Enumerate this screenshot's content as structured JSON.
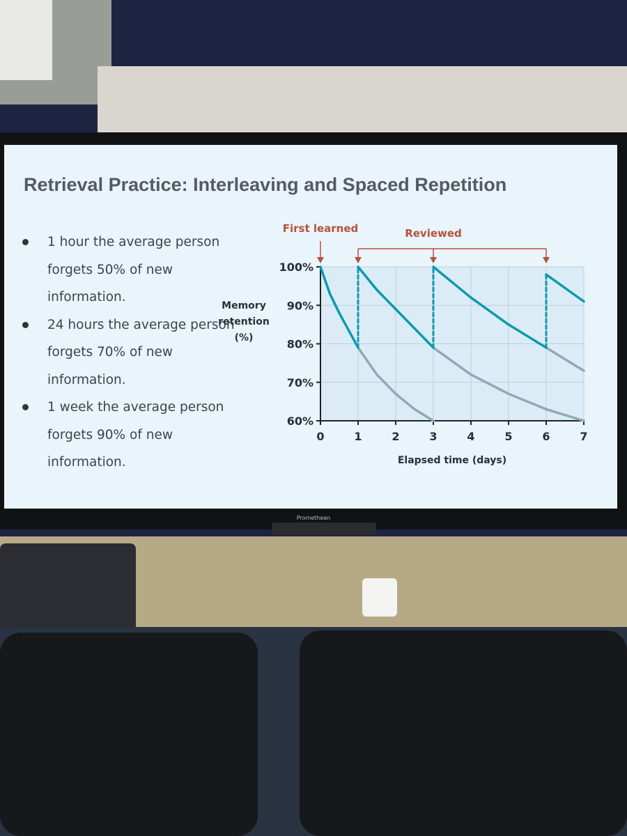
{
  "header": {
    "title": "Retrieval Practice: Interleaving and Spaced Repetition"
  },
  "bullets": [
    "1 hour the average person forgets 50% of new information.",
    "24 hours the average person forgets 70% of new information.",
    "1 week the average person forgets 90% of new information."
  ],
  "brand": "Promethean",
  "chart_data": {
    "type": "line",
    "x_label": "Elapsed time (days)",
    "y_label": "Memory retention (%)",
    "xlim": [
      0,
      7
    ],
    "ylim": [
      60,
      100
    ],
    "xticks": [
      0,
      1,
      2,
      3,
      4,
      5,
      6,
      7
    ],
    "yticks": [
      {
        "value": 60,
        "label": "60%"
      },
      {
        "value": 70,
        "label": "70%"
      },
      {
        "value": 80,
        "label": "80%"
      },
      {
        "value": 90,
        "label": "90%"
      },
      {
        "value": 100,
        "label": "100%"
      }
    ],
    "grid": true,
    "annotations": [
      {
        "text": "First learned",
        "x": [
          0
        ]
      },
      {
        "text": "Reviewed",
        "x": [
          1,
          3,
          6
        ]
      }
    ],
    "series": [
      {
        "color": "#8fa9b6",
        "x": [
          1,
          1.5,
          2,
          2.5,
          3
        ],
        "values": [
          79,
          72,
          67,
          63,
          60
        ]
      },
      {
        "color": "#8fa9b6",
        "x": [
          3,
          4,
          5,
          6,
          7
        ],
        "values": [
          79,
          72,
          67,
          63,
          60
        ]
      },
      {
        "color": "#8fa9b6",
        "x": [
          6,
          6.5,
          7
        ],
        "values": [
          79,
          76,
          73
        ]
      },
      {
        "color": "#0d9aae",
        "x": [
          0,
          0.25,
          0.5,
          0.75,
          1
        ],
        "values": [
          100,
          93,
          88,
          83.5,
          79
        ]
      },
      {
        "color": "#0d9aae",
        "x": [
          1,
          1.5,
          2,
          2.5,
          3
        ],
        "values": [
          100,
          94,
          89,
          84,
          79
        ]
      },
      {
        "color": "#0d9aae",
        "x": [
          3,
          4,
          5,
          6
        ],
        "values": [
          100,
          92,
          85,
          79
        ]
      },
      {
        "color": "#0d9aae",
        "x": [
          6,
          6.5,
          7
        ],
        "values": [
          98,
          94.5,
          91
        ]
      },
      {
        "color": "#0d9aae",
        "dashed": true,
        "x": [
          1,
          1
        ],
        "values": [
          79,
          100
        ]
      },
      {
        "color": "#0d9aae",
        "dashed": true,
        "x": [
          3,
          3
        ],
        "values": [
          79,
          100
        ]
      },
      {
        "color": "#0d9aae",
        "dashed": true,
        "x": [
          6,
          6
        ],
        "values": [
          79,
          98
        ]
      }
    ]
  }
}
